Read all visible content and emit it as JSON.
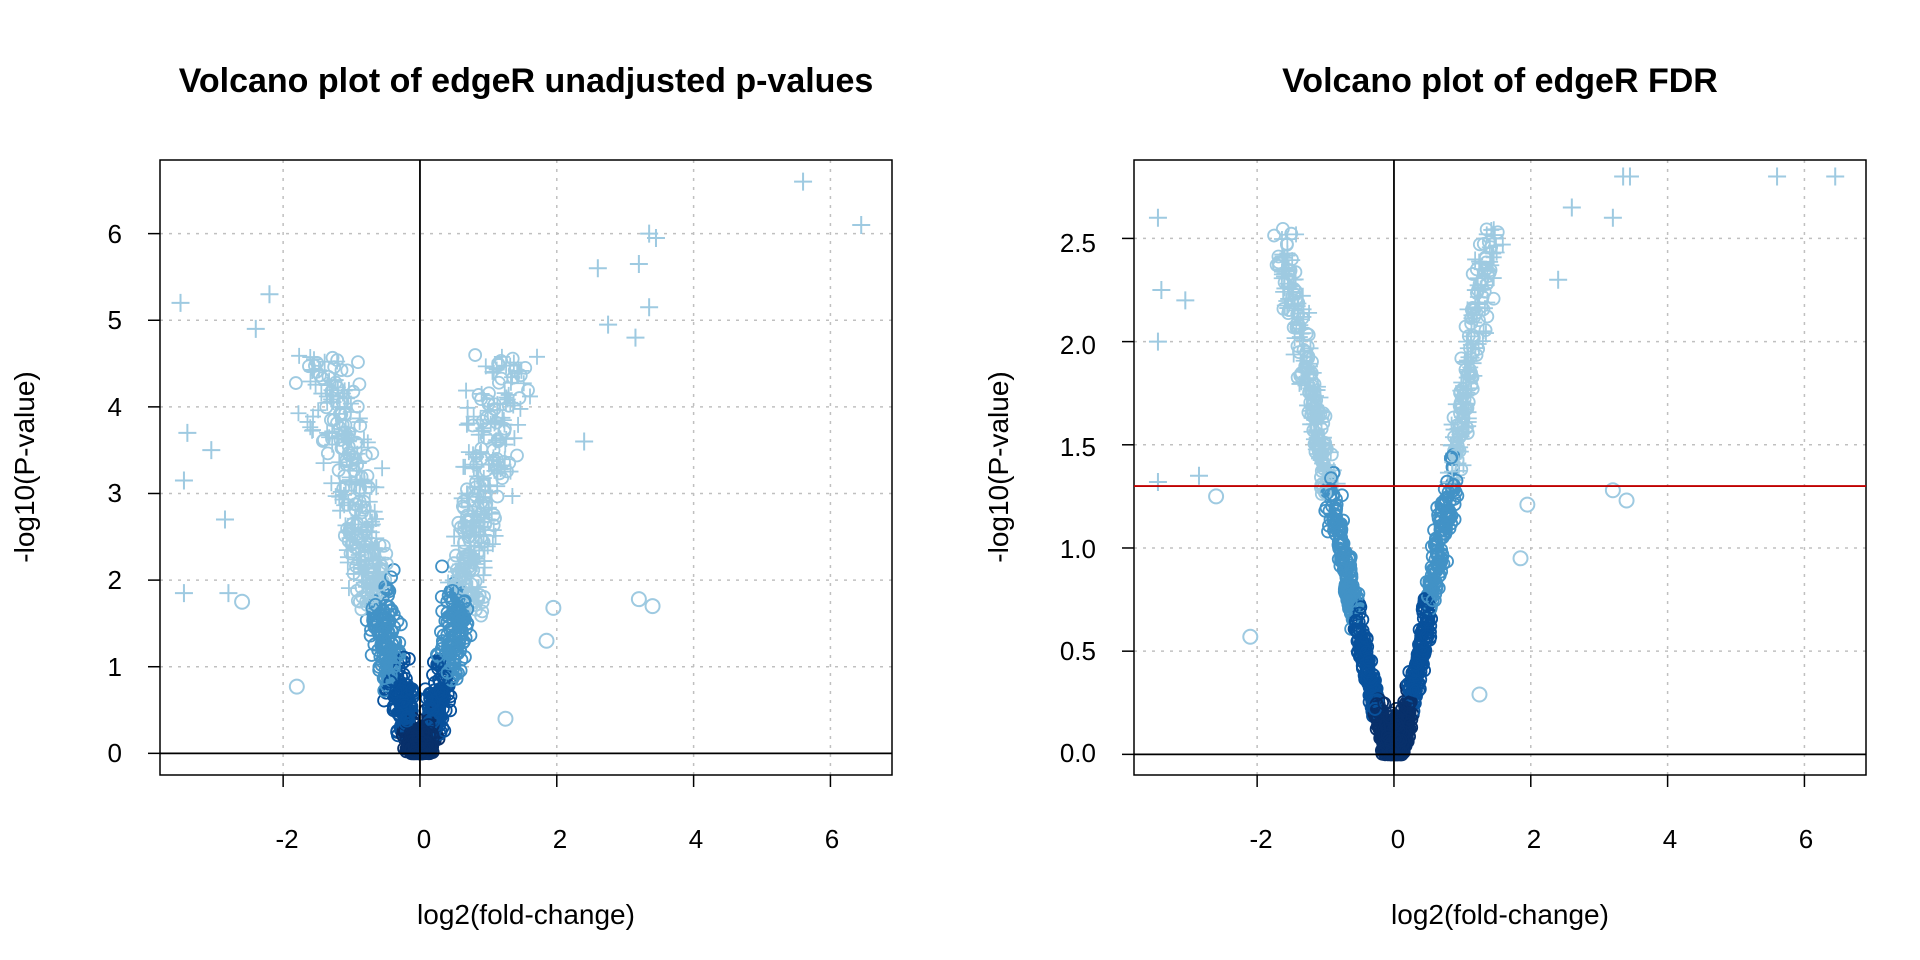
{
  "charts": [
    {
      "title": "Volcano plot of edgeR unadjusted p-values",
      "xlabel": "log2(fold-change)",
      "ylabel": "-log10(P-value)",
      "xticks": [
        "-2",
        "0",
        "2",
        "4",
        "6"
      ],
      "yticks": [
        "0",
        "1",
        "2",
        "3",
        "4",
        "5",
        "6"
      ]
    },
    {
      "title": "Volcano plot of edgeR FDR",
      "xlabel": "log2(fold-change)",
      "ylabel": "-log10(P-value)",
      "xticks": [
        "-2",
        "0",
        "2",
        "4",
        "6"
      ],
      "yticks": [
        "0.0",
        "0.5",
        "1.0",
        "1.5",
        "2.0",
        "2.5"
      ]
    }
  ],
  "colors": {
    "light": "#9ecae1",
    "mid": "#4292c6",
    "dark": "#08519c",
    "darkest": "#08306b",
    "threshold": "#c00000",
    "grid": "#c0c0c0"
  },
  "chart_data": [
    {
      "type": "scatter",
      "title": "Volcano plot of edgeR unadjusted p-values",
      "xlabel": "log2(fold-change)",
      "ylabel": "-log10(P-value)",
      "xlim": [
        -3.8,
        6.9
      ],
      "ylim": [
        -0.25,
        6.85
      ],
      "xticks": [
        -2,
        0,
        2,
        4,
        6
      ],
      "yticks": [
        0,
        1,
        2,
        3,
        4,
        5,
        6
      ],
      "grid": true,
      "reference_lines": {
        "vertical": [
          0
        ],
        "horizontal": [
          0
        ]
      },
      "markers": {
        "significant": "plus",
        "not_significant": "circle"
      },
      "notable_points": [
        {
          "x": 5.6,
          "y": 6.6,
          "marker": "plus"
        },
        {
          "x": 6.45,
          "y": 6.1,
          "marker": "plus"
        },
        {
          "x": 3.35,
          "y": 6.0,
          "marker": "plus"
        },
        {
          "x": 3.45,
          "y": 5.95,
          "marker": "plus"
        },
        {
          "x": 3.2,
          "y": 5.65,
          "marker": "plus"
        },
        {
          "x": 2.6,
          "y": 5.6,
          "marker": "plus"
        },
        {
          "x": 3.35,
          "y": 5.15,
          "marker": "plus"
        },
        {
          "x": 3.15,
          "y": 4.8,
          "marker": "plus"
        },
        {
          "x": 2.75,
          "y": 4.95,
          "marker": "plus"
        },
        {
          "x": 2.4,
          "y": 3.6,
          "marker": "plus"
        },
        {
          "x": -2.2,
          "y": 5.3,
          "marker": "plus"
        },
        {
          "x": -3.5,
          "y": 5.2,
          "marker": "plus"
        },
        {
          "x": -2.4,
          "y": 4.9,
          "marker": "plus"
        },
        {
          "x": -3.4,
          "y": 3.7,
          "marker": "plus"
        },
        {
          "x": -3.45,
          "y": 3.15,
          "marker": "plus"
        },
        {
          "x": -3.05,
          "y": 3.5,
          "marker": "plus"
        },
        {
          "x": -3.45,
          "y": 1.85,
          "marker": "plus"
        },
        {
          "x": -2.8,
          "y": 1.85,
          "marker": "plus"
        },
        {
          "x": -2.85,
          "y": 2.7,
          "marker": "plus"
        },
        {
          "x": 3.2,
          "y": 1.78,
          "marker": "circle"
        },
        {
          "x": 3.4,
          "y": 1.7,
          "marker": "circle"
        },
        {
          "x": 1.95,
          "y": 1.68,
          "marker": "circle"
        },
        {
          "x": 1.85,
          "y": 1.3,
          "marker": "circle"
        },
        {
          "x": 1.25,
          "y": 0.4,
          "marker": "circle"
        },
        {
          "x": -2.6,
          "y": 1.75,
          "marker": "circle"
        },
        {
          "x": -1.8,
          "y": 0.77,
          "marker": "circle"
        }
      ]
    },
    {
      "type": "scatter",
      "title": "Volcano plot of edgeR FDR",
      "xlabel": "log2(fold-change)",
      "ylabel": "-log10(P-value)",
      "xlim": [
        -3.8,
        6.9
      ],
      "ylim": [
        -0.1,
        2.88
      ],
      "xticks": [
        -2,
        0,
        2,
        4,
        6
      ],
      "yticks": [
        0.0,
        0.5,
        1.0,
        1.5,
        2.0,
        2.5
      ],
      "grid": true,
      "reference_lines": {
        "vertical": [
          0
        ],
        "horizontal": [
          0
        ],
        "threshold": 1.3
      },
      "markers": {
        "significant": "plus",
        "not_significant": "circle"
      },
      "notable_points": [
        {
          "x": 5.6,
          "y": 2.8,
          "marker": "plus"
        },
        {
          "x": 6.45,
          "y": 2.8,
          "marker": "plus"
        },
        {
          "x": 3.35,
          "y": 2.8,
          "marker": "plus"
        },
        {
          "x": 3.45,
          "y": 2.8,
          "marker": "plus"
        },
        {
          "x": 3.2,
          "y": 2.6,
          "marker": "plus"
        },
        {
          "x": 2.6,
          "y": 2.65,
          "marker": "plus"
        },
        {
          "x": 2.4,
          "y": 2.3,
          "marker": "plus"
        },
        {
          "x": -3.45,
          "y": 2.6,
          "marker": "plus"
        },
        {
          "x": -3.4,
          "y": 2.25,
          "marker": "plus"
        },
        {
          "x": -3.45,
          "y": 2.0,
          "marker": "plus"
        },
        {
          "x": -3.05,
          "y": 2.2,
          "marker": "plus"
        },
        {
          "x": -3.45,
          "y": 1.32,
          "marker": "plus"
        },
        {
          "x": -2.85,
          "y": 1.35,
          "marker": "plus"
        },
        {
          "x": 3.2,
          "y": 1.28,
          "marker": "circle"
        },
        {
          "x": 3.4,
          "y": 1.23,
          "marker": "circle"
        },
        {
          "x": 1.95,
          "y": 1.21,
          "marker": "circle"
        },
        {
          "x": 1.85,
          "y": 0.95,
          "marker": "circle"
        },
        {
          "x": 1.25,
          "y": 0.29,
          "marker": "circle"
        },
        {
          "x": -2.6,
          "y": 1.25,
          "marker": "circle"
        },
        {
          "x": -2.1,
          "y": 0.57,
          "marker": "circle"
        }
      ]
    }
  ]
}
